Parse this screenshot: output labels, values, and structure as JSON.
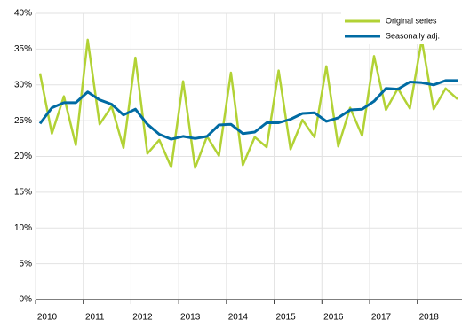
{
  "chart_data": {
    "type": "line",
    "categories": [
      "2010",
      null,
      null,
      null,
      "2011",
      null,
      null,
      null,
      "2012",
      null,
      null,
      null,
      "2013",
      null,
      null,
      null,
      "2014",
      null,
      null,
      null,
      "2015",
      null,
      null,
      null,
      "2016",
      null,
      null,
      null,
      "2017",
      null,
      null,
      null,
      "2018",
      null,
      null,
      null
    ],
    "series": [
      {
        "name": "Original series",
        "color": "#b2d235",
        "values": [
          31.6,
          23.2,
          28.4,
          21.6,
          36.3,
          24.5,
          27.0,
          21.2,
          33.8,
          20.4,
          22.3,
          18.5,
          30.5,
          18.4,
          22.8,
          20.1,
          31.7,
          18.8,
          22.7,
          21.3,
          32.0,
          21.0,
          25.1,
          22.7,
          32.6,
          21.4,
          26.8,
          22.9,
          34.0,
          26.5,
          29.5,
          26.7,
          36.3,
          26.6,
          29.5,
          28.0
        ]
      },
      {
        "name": "Seasonally adj.",
        "color": "#006ba3",
        "values": [
          24.6,
          26.8,
          27.5,
          27.5,
          29.0,
          27.9,
          27.3,
          25.8,
          26.6,
          24.5,
          23.1,
          22.4,
          22.8,
          22.5,
          22.8,
          24.4,
          24.5,
          23.2,
          23.4,
          24.7,
          24.7,
          25.2,
          26.0,
          26.1,
          24.9,
          25.4,
          26.5,
          26.6,
          27.7,
          29.5,
          29.4,
          30.4,
          30.3,
          30.0,
          30.6,
          30.6
        ]
      }
    ],
    "ylim": [
      0,
      40
    ],
    "yticks": [
      {
        "value": 0,
        "label": "0%"
      },
      {
        "value": 5,
        "label": "5%"
      },
      {
        "value": 10,
        "label": "10%"
      },
      {
        "value": 15,
        "label": "15%"
      },
      {
        "value": 20,
        "label": "20%"
      },
      {
        "value": 25,
        "label": "25%"
      },
      {
        "value": 30,
        "label": "30%"
      },
      {
        "value": 35,
        "label": "35%"
      },
      {
        "value": 40,
        "label": "40%"
      }
    ],
    "grid": true,
    "legend": "upper right"
  }
}
